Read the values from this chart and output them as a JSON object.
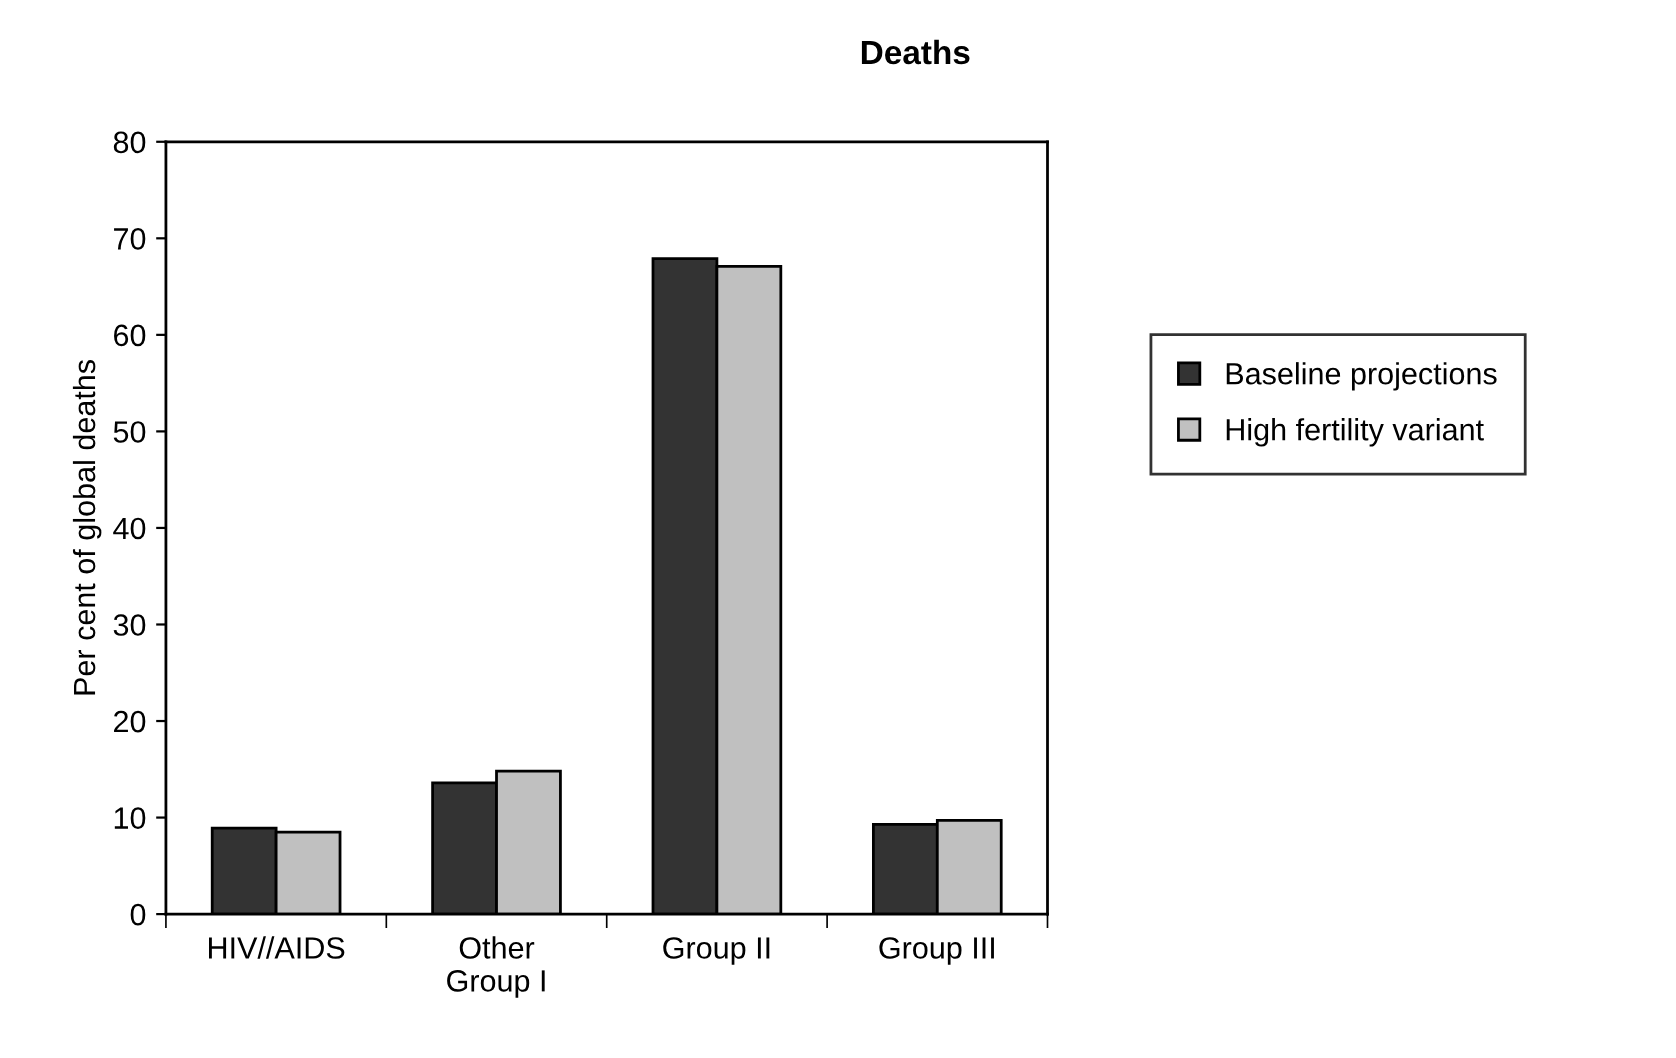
{
  "chart_data": {
    "type": "bar",
    "title": "Deaths",
    "ylabel": "Per cent of global deaths",
    "categories": [
      "HIV//AIDS",
      "Other\nGroup I",
      "Group II",
      "Group III"
    ],
    "series": [
      {
        "name": "Baseline projections",
        "color": "#333333",
        "values": [
          8.9,
          13.6,
          67.9,
          9.3
        ]
      },
      {
        "name": "High fertility variant",
        "color": "#c0c0c0",
        "values": [
          8.5,
          14.8,
          67.1,
          9.7
        ]
      }
    ],
    "ylim": [
      0,
      80
    ],
    "yticks": [
      0,
      10,
      20,
      30,
      40,
      50,
      60,
      70,
      80
    ],
    "grid": false,
    "legend": "right"
  }
}
